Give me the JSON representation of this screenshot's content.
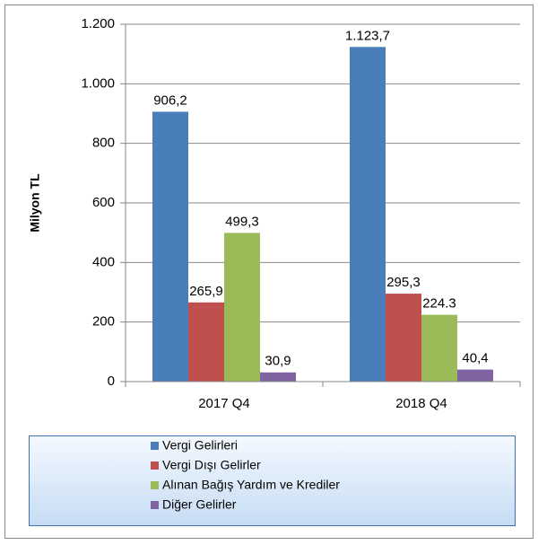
{
  "chart_data": {
    "type": "bar",
    "categories": [
      "2017 Q4",
      "2018 Q4"
    ],
    "ylabel": "Milyon TL",
    "series": [
      {
        "name": "Vergi Gelirleri",
        "color": "#4a7ebb",
        "values": [
          906.2,
          1123.7
        ],
        "value_labels": [
          "906,2",
          "1.123,7"
        ]
      },
      {
        "name": "Vergi Dışı Gelirler",
        "color": "#c0504d",
        "values": [
          265.9,
          295.3
        ],
        "value_labels": [
          "265,9",
          "295,3"
        ]
      },
      {
        "name": "Alınan Bağış Yardım ve Krediler",
        "color": "#9bbb59",
        "values": [
          499.3,
          224.3
        ],
        "value_labels": [
          "499,3",
          "224.3"
        ]
      },
      {
        "name": "Diğer Gelirler",
        "color": "#8064a2",
        "values": [
          30.9,
          40.4
        ],
        "value_labels": [
          "30,9",
          "40,4"
        ]
      }
    ],
    "ylim": [
      0,
      1200
    ],
    "yticks": [
      0,
      200,
      400,
      600,
      800,
      {
        "value": 1000,
        "label": "1.000"
      },
      {
        "value": 1200,
        "label": "1.200"
      }
    ],
    "grid": true,
    "legend": "bottom"
  }
}
